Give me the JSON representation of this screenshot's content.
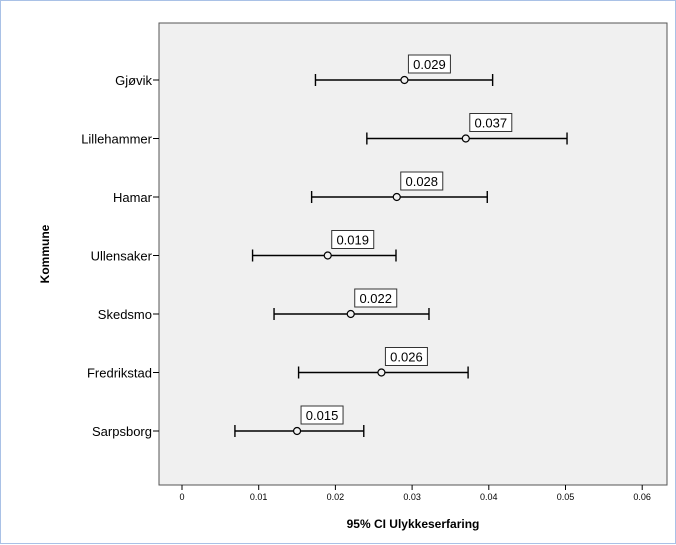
{
  "chart_data": {
    "type": "errorbar",
    "title": "",
    "xlabel": "95% CI Ulykkeserfaring",
    "ylabel": "Kommune",
    "xlim": [
      0,
      0.06
    ],
    "xticks": [
      0,
      0.01,
      0.02,
      0.03,
      0.04,
      0.05,
      0.06
    ],
    "xtick_labels": [
      "0",
      "0.01",
      "0.02",
      "0.03",
      "0.04",
      "0.05",
      "0.06"
    ],
    "grid": false,
    "categories": [
      "Gjøvik",
      "Lillehammer",
      "Hamar",
      "Ullensaker",
      "Skedsmo",
      "Fredrikstad",
      "Sarpsborg"
    ],
    "means": [
      0.029,
      0.037,
      0.028,
      0.019,
      0.022,
      0.026,
      0.015
    ],
    "lower": [
      0.0174,
      0.0241,
      0.0169,
      0.0092,
      0.012,
      0.0152,
      0.0069
    ],
    "upper": [
      0.0405,
      0.0502,
      0.0398,
      0.0279,
      0.0322,
      0.0373,
      0.0237
    ],
    "data_labels": [
      "0.029",
      "0.037",
      "0.028",
      "0.019",
      "0.022",
      "0.026",
      "0.015"
    ]
  },
  "colors": {
    "plot_background": "#f0f0f0",
    "frame_border": "#a9c1e6",
    "ink": "#000000"
  }
}
